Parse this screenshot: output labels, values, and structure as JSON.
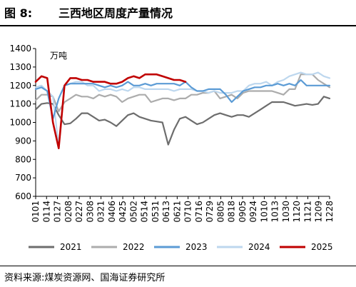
{
  "header": {
    "figure_label": "图 8:",
    "title": "三西地区周度产量情况"
  },
  "footer": {
    "source": "资料来源:煤炭资源网、国海证券研究所"
  },
  "colors": {
    "2021": "#6d6d6d",
    "2022": "#acacac",
    "2023": "#5b9bd5",
    "2024": "#bdd7ee",
    "2025": "#c00000"
  },
  "chart_data": {
    "type": "line",
    "unit": "万吨",
    "ylim": [
      600,
      1400
    ],
    "yticks": [
      600,
      700,
      800,
      900,
      1000,
      1100,
      1200,
      1300,
      1400
    ],
    "xticks": [
      "0101",
      "0114",
      "0127",
      "0208",
      "0227",
      "0308",
      "0321",
      "0406",
      "0425",
      "0502",
      "0514",
      "0531",
      "0613",
      "0621",
      "0710",
      "0716",
      "0729",
      "0805",
      "0818",
      "0905",
      "0924",
      "1010",
      "1013",
      "1030",
      "1120",
      "1121",
      "1209",
      "1228"
    ],
    "n_weeks": 52,
    "legend_position": "bottom",
    "series": [
      {
        "name": "2021",
        "values": [
          1070,
          1100,
          1105,
          1100,
          1040,
          990,
          995,
          1020,
          1050,
          1050,
          1030,
          1010,
          1015,
          1000,
          980,
          1010,
          1040,
          1050,
          1030,
          1020,
          1010,
          1005,
          1000,
          880,
          960,
          1020,
          1030,
          1010,
          990,
          1000,
          1020,
          1040,
          1050,
          1040,
          1030,
          1040,
          1040,
          1030,
          1050,
          1070,
          1090,
          1110,
          1110,
          1110,
          1100,
          1090,
          1095,
          1100,
          1095,
          1100,
          1140,
          1130
        ]
      },
      {
        "name": "2022",
        "values": [
          1120,
          1150,
          1150,
          1140,
          1060,
          1110,
          1130,
          1150,
          1140,
          1140,
          1130,
          1150,
          1140,
          1150,
          1140,
          1110,
          1130,
          1140,
          1150,
          1150,
          1110,
          1120,
          1130,
          1130,
          1120,
          1130,
          1130,
          1150,
          1150,
          1160,
          1160,
          1170,
          1130,
          1140,
          1150,
          1130,
          1160,
          1170,
          1170,
          1170,
          1170,
          1170,
          1160,
          1150,
          1180,
          1180,
          1260,
          1260,
          1260,
          1230,
          1210,
          1190
        ]
      },
      {
        "name": "2023",
        "values": [
          1180,
          1190,
          1170,
          1020,
          1130,
          1200,
          1210,
          1210,
          1210,
          1210,
          1210,
          1200,
          1190,
          1200,
          1190,
          1200,
          1220,
          1200,
          1200,
          1210,
          1200,
          1210,
          1210,
          1210,
          1210,
          1200,
          1220,
          1190,
          1170,
          1170,
          1180,
          1180,
          1180,
          1150,
          1110,
          1140,
          1170,
          1180,
          1190,
          1190,
          1200,
          1200,
          1210,
          1200,
          1210,
          1200,
          1230,
          1200,
          1200,
          1200,
          1200,
          1200
        ]
      },
      {
        "name": "2024",
        "values": [
          1190,
          1200,
          1170,
          1140,
          870,
          1200,
          1210,
          1220,
          1220,
          1200,
          1200,
          1170,
          1180,
          1180,
          1170,
          1180,
          1170,
          1190,
          1190,
          1180,
          1180,
          1180,
          1180,
          1180,
          1170,
          1180,
          1180,
          1180,
          1170,
          1170,
          1160,
          1170,
          1160,
          1160,
          1160,
          1170,
          1170,
          1200,
          1210,
          1210,
          1220,
          1200,
          1220,
          1230,
          1250,
          1260,
          1270,
          1260,
          1260,
          1270,
          1250,
          1240
        ]
      },
      {
        "name": "2025",
        "values": [
          1220,
          1250,
          1240,
          1000,
          860,
          1200,
          1240,
          1240,
          1230,
          1230,
          1220,
          1220,
          1220,
          1210,
          1210,
          1220,
          1240,
          1250,
          1240,
          1260,
          1260,
          1260,
          1250,
          1240,
          1230,
          1230,
          1220
        ]
      }
    ]
  }
}
